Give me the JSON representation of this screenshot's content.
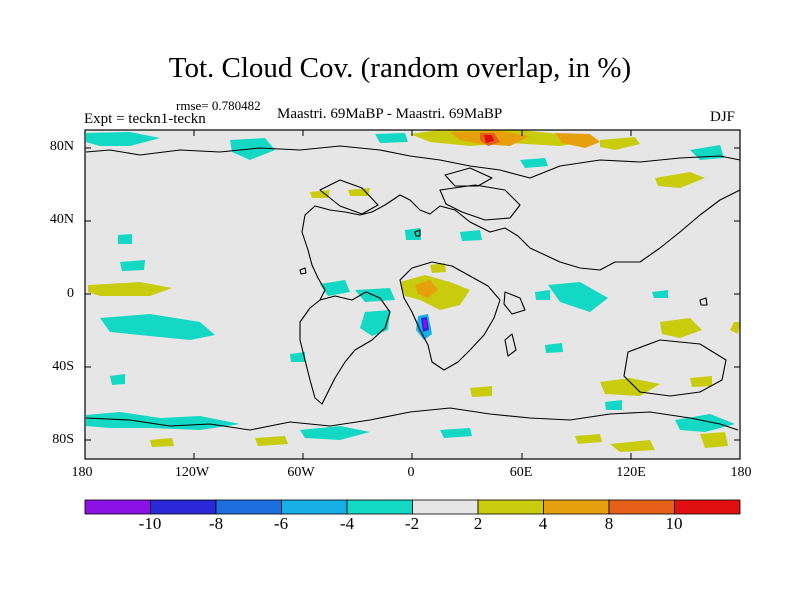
{
  "title": "Tot. Cloud Cov. (random overlap, in %)",
  "left_label": "Expt = teckn1-teckn",
  "rmse_label": "rmse= 0.780482",
  "center_label": "Maastri. 69MaBP - Maastri. 69MaBP",
  "right_label": "DJF",
  "lat_ticks": [
    "80N",
    "40N",
    "0",
    "40S",
    "80S"
  ],
  "lon_ticks": [
    "180",
    "120W",
    "60W",
    "0",
    "60E",
    "120E",
    "180"
  ],
  "colorbar": {
    "labels": [
      "-10",
      "-8",
      "-6",
      "-4",
      "-2",
      "2",
      "4",
      "8",
      "10"
    ],
    "colors": [
      "#8a12e6",
      "#2a28d8",
      "#1f6ee0",
      "#16b0e6",
      "#12d8c4",
      "#e6e6e6",
      "#c8cc0c",
      "#e6a00e",
      "#e6601a",
      "#e01010"
    ]
  },
  "map": {
    "background_color": "#e6e6e6",
    "coastline_color": "#000000",
    "lat_range": [
      -90,
      90
    ],
    "lon_range": [
      -180,
      180
    ]
  }
}
